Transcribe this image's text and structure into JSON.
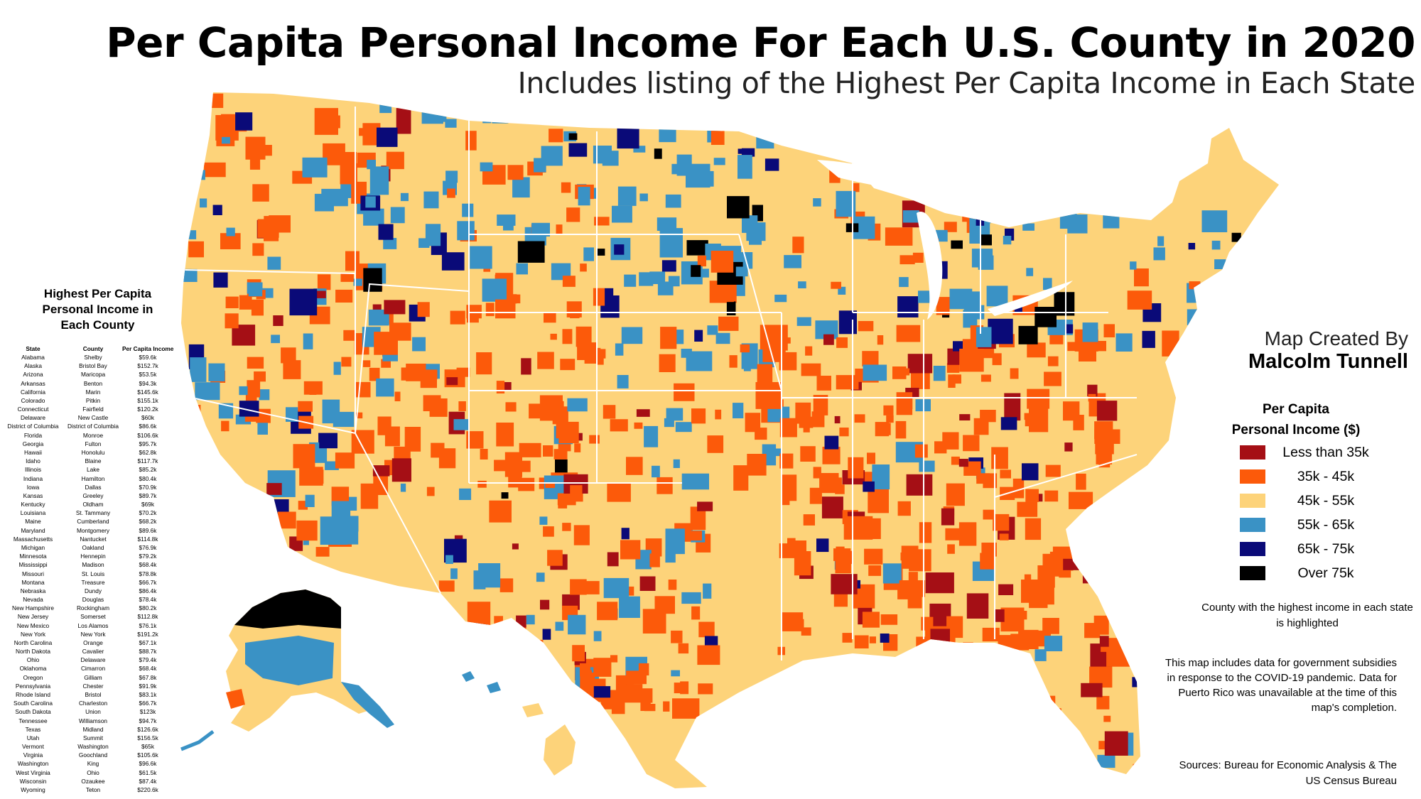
{
  "title": "Per Capita Personal Income For Each U.S. County in 2020",
  "subtitle": "Includes listing of the Highest Per Capita Income in Each State",
  "credit": {
    "line1": "Map Created By",
    "author": "Malcolm Tunnell"
  },
  "colors": {
    "lt35": "#a50f15",
    "35_45": "#fc5a0a",
    "45_55": "#fdd37a",
    "55_65": "#3a92c5",
    "65_75": "#0a0a78",
    "over75": "#000000",
    "border": "#ffffff"
  },
  "legend": {
    "title_line1": "Per Capita",
    "title_line2": "Personal Income ($)",
    "items": [
      {
        "label": "Less than 35k",
        "color": "#a50f15"
      },
      {
        "label": "35k - 45k",
        "color": "#fc5a0a"
      },
      {
        "label": "45k - 55k",
        "color": "#fdd37a"
      },
      {
        "label": "55k - 65k",
        "color": "#3a92c5"
      },
      {
        "label": "65k - 75k",
        "color": "#0a0a78"
      },
      {
        "label": "Over 75k",
        "color": "#000000"
      }
    ]
  },
  "notes": {
    "highlight": "County with the highest income in each state is highlighted",
    "covid": "This map includes data for government subsidies in response to the COVID-19 pandemic.  Data for Puerto Rico was unavailable at the time of this map's completion.",
    "sources": "Sources: Bureau for Economic Analysis & The US Census Bureau"
  },
  "table": {
    "title_line1": "Highest Per Capita",
    "title_line2": "Personal Income in",
    "title_line3": "Each County",
    "headers": {
      "state": "State",
      "county": "County",
      "income": "Per Capita Income"
    },
    "rows": [
      {
        "state": "Alabama",
        "county": "Shelby",
        "income": "$59.6k"
      },
      {
        "state": "Alaska",
        "county": "Bristol Bay",
        "income": "$152.7k"
      },
      {
        "state": "Arizona",
        "county": "Maricopa",
        "income": "$53.5k"
      },
      {
        "state": "Arkansas",
        "county": "Benton",
        "income": "$94.3k"
      },
      {
        "state": "California",
        "county": "Marin",
        "income": "$145.6k"
      },
      {
        "state": "Colorado",
        "county": "Pitkin",
        "income": "$155.1k"
      },
      {
        "state": "Connecticut",
        "county": "Fairfield",
        "income": "$120.2k"
      },
      {
        "state": "Delaware",
        "county": "New Castle",
        "income": "$60k"
      },
      {
        "state": "District of Columbia",
        "county": "District of Columbia",
        "income": "$86.6k"
      },
      {
        "state": "Florida",
        "county": "Monroe",
        "income": "$106.6k"
      },
      {
        "state": "Georgia",
        "county": "Fulton",
        "income": "$95.7k"
      },
      {
        "state": "Hawaii",
        "county": "Honolulu",
        "income": "$62.8k"
      },
      {
        "state": "Idaho",
        "county": "Blaine",
        "income": "$117.7k"
      },
      {
        "state": "Illinois",
        "county": "Lake",
        "income": "$85.2k"
      },
      {
        "state": "Indiana",
        "county": "Hamilton",
        "income": "$80.4k"
      },
      {
        "state": "Iowa",
        "county": "Dallas",
        "income": "$70.9k"
      },
      {
        "state": "Kansas",
        "county": "Greeley",
        "income": "$89.7k"
      },
      {
        "state": "Kentucky",
        "county": "Oldham",
        "income": "$69k"
      },
      {
        "state": "Louisiana",
        "county": "St. Tammany",
        "income": "$70.2k"
      },
      {
        "state": "Maine",
        "county": "Cumberland",
        "income": "$68.2k"
      },
      {
        "state": "Maryland",
        "county": "Montgomery",
        "income": "$89.6k"
      },
      {
        "state": "Massachusetts",
        "county": "Nantucket",
        "income": "$114.8k"
      },
      {
        "state": "Michigan",
        "county": "Oakland",
        "income": "$76.9k"
      },
      {
        "state": "Minnesota",
        "county": "Hennepin",
        "income": "$79.2k"
      },
      {
        "state": "Mississippi",
        "county": "Madison",
        "income": "$68.4k"
      },
      {
        "state": "Missouri",
        "county": "St. Louis",
        "income": "$78.8k"
      },
      {
        "state": "Montana",
        "county": "Treasure",
        "income": "$66.7k"
      },
      {
        "state": "Nebraska",
        "county": "Dundy",
        "income": "$86.4k"
      },
      {
        "state": "Nevada",
        "county": "Douglas",
        "income": "$78.4k"
      },
      {
        "state": "New Hampshire",
        "county": "Rockingham",
        "income": "$80.2k"
      },
      {
        "state": "New Jersey",
        "county": "Somerset",
        "income": "$112.8k"
      },
      {
        "state": "New Mexico",
        "county": "Los Alamos",
        "income": "$76.1k"
      },
      {
        "state": "New York",
        "county": "New York",
        "income": "$191.2k"
      },
      {
        "state": "North Carolina",
        "county": "Orange",
        "income": "$67.1k"
      },
      {
        "state": "North Dakota",
        "county": "Cavalier",
        "income": "$88.7k"
      },
      {
        "state": "Ohio",
        "county": "Delaware",
        "income": "$79.4k"
      },
      {
        "state": "Oklahoma",
        "county": "Cimarron",
        "income": "$68.4k"
      },
      {
        "state": "Oregon",
        "county": "Gilliam",
        "income": "$67.8k"
      },
      {
        "state": "Pennsylvania",
        "county": "Chester",
        "income": "$91.9k"
      },
      {
        "state": "Rhode Island",
        "county": "Bristol",
        "income": "$83.1k"
      },
      {
        "state": "South Carolina",
        "county": "Charleston",
        "income": "$66.7k"
      },
      {
        "state": "South Dakota",
        "county": "Union",
        "income": "$123k"
      },
      {
        "state": "Tennessee",
        "county": "Williamson",
        "income": "$94.7k"
      },
      {
        "state": "Texas",
        "county": "Midland",
        "income": "$126.6k"
      },
      {
        "state": "Utah",
        "county": "Summit",
        "income": "$156.5k"
      },
      {
        "state": "Vermont",
        "county": "Washington",
        "income": "$65k"
      },
      {
        "state": "Virginia",
        "county": "Goochland",
        "income": "$105.6k"
      },
      {
        "state": "Washington",
        "county": "King",
        "income": "$96.6k"
      },
      {
        "state": "West Virginia",
        "county": "Ohio",
        "income": "$61.5k"
      },
      {
        "state": "Wisconsin",
        "county": "Ozaukee",
        "income": "$87.4k"
      },
      {
        "state": "Wyoming",
        "county": "Teton",
        "income": "$220.6k"
      }
    ]
  }
}
